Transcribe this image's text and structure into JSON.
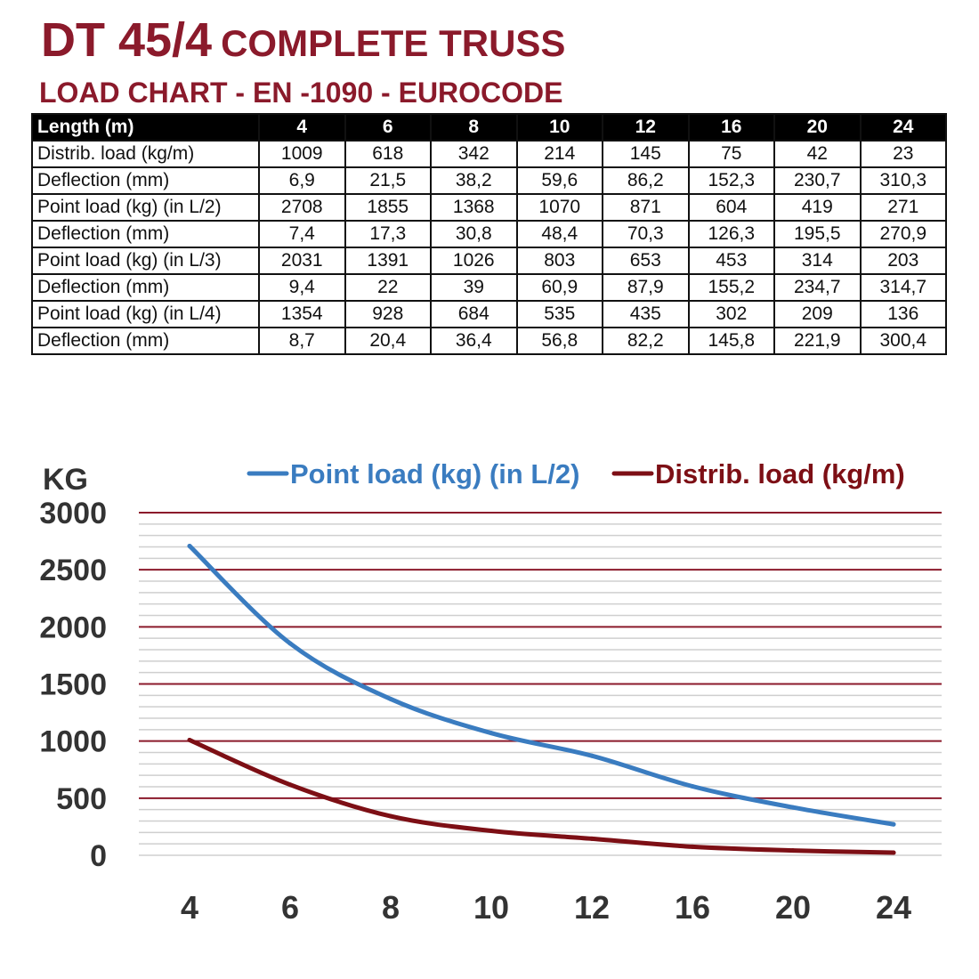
{
  "title": {
    "model": "DT 45/4",
    "name": "COMPLETE TRUSS"
  },
  "subtitle": "LOAD CHART - EN -1090 - EUROCODE",
  "table": {
    "header": "Length (m)",
    "lengths": [
      "4",
      "6",
      "8",
      "10",
      "12",
      "16",
      "20",
      "24"
    ],
    "rows": [
      {
        "label": "Distrib. load (kg/m)",
        "values": [
          "1009",
          "618",
          "342",
          "214",
          "145",
          "75",
          "42",
          "23"
        ]
      },
      {
        "label": "Deflection (mm)",
        "values": [
          "6,9",
          "21,5",
          "38,2",
          "59,6",
          "86,2",
          "152,3",
          "230,7",
          "310,3"
        ]
      },
      {
        "label": "Point load (kg) (in L/2)",
        "values": [
          "2708",
          "1855",
          "1368",
          "1070",
          "871",
          "604",
          "419",
          "271"
        ]
      },
      {
        "label": "Deflection (mm)",
        "values": [
          "7,4",
          "17,3",
          "30,8",
          "48,4",
          "70,3",
          "126,3",
          "195,5",
          "270,9"
        ]
      },
      {
        "label": "Point load (kg) (in L/3)",
        "values": [
          "2031",
          "1391",
          "1026",
          "803",
          "653",
          "453",
          "314",
          "203"
        ]
      },
      {
        "label": "Deflection (mm)",
        "values": [
          "9,4",
          "22",
          "39",
          "60,9",
          "87,9",
          "155,2",
          "234,7",
          "314,7"
        ]
      },
      {
        "label": "Point load (kg) (in L/4)",
        "values": [
          "1354",
          "928",
          "684",
          "535",
          "435",
          "302",
          "209",
          "136"
        ]
      },
      {
        "label": "Deflection (mm)",
        "values": [
          "8,7",
          "20,4",
          "36,4",
          "56,8",
          "82,2",
          "145,8",
          "221,9",
          "300,4"
        ]
      }
    ]
  },
  "chart_data": {
    "type": "line",
    "ylabel": "KG",
    "categories": [
      "4",
      "6",
      "8",
      "10",
      "12",
      "16",
      "20",
      "24"
    ],
    "ylim": [
      0,
      3000
    ],
    "yticks": [
      "0",
      "500",
      "1000",
      "1500",
      "2000",
      "2500",
      "3000"
    ],
    "grid": true,
    "legend": "top",
    "series": [
      {
        "name": "Point load (kg) (in L/2)",
        "color": "#3a7cc0",
        "values": [
          2708,
          1855,
          1368,
          1070,
          871,
          604,
          419,
          271
        ]
      },
      {
        "name": "Distrib. load (kg/m)",
        "color": "#7d0f15",
        "values": [
          1009,
          618,
          342,
          214,
          145,
          75,
          42,
          23
        ]
      }
    ],
    "major_grid_color": "#8b1a2b",
    "minor_grid_color": "#cfcfcf"
  }
}
